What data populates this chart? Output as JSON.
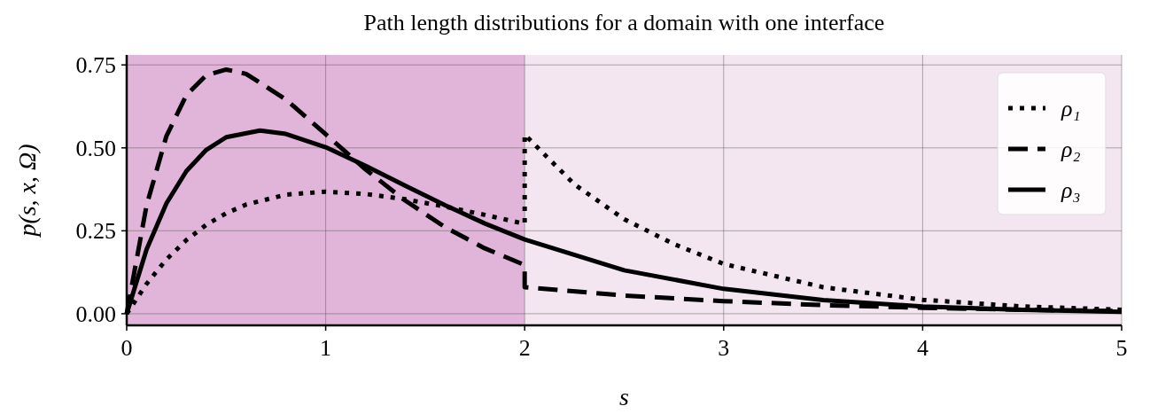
{
  "chart_data": {
    "type": "line",
    "title": "Path length distributions for a domain with one interface",
    "xlabel": "s",
    "ylabel": "p(s, x, Ω)",
    "xlim": [
      0,
      5
    ],
    "ylim": [
      -0.035,
      0.78
    ],
    "xticks": [
      0,
      1,
      2,
      3,
      4,
      5
    ],
    "yticks": [
      {
        "value": 0,
        "label": "0.00"
      },
      {
        "value": 0.25,
        "label": "0.25"
      },
      {
        "value": 0.5,
        "label": "0.50"
      },
      {
        "value": 0.75,
        "label": "0.75"
      }
    ],
    "grid": true,
    "legend": "top right",
    "bands": [
      {
        "axis": "x",
        "from": 0,
        "to": 2,
        "color": "#e1b5d9"
      },
      {
        "axis": "x",
        "from": 2,
        "to": 5,
        "color": "#f4e6f1"
      }
    ],
    "series": [
      {
        "name": "ρ₁",
        "color": "#000000",
        "line_style": "dotted",
        "x": [
          0,
          0.1,
          0.2,
          0.3,
          0.4,
          0.5,
          0.6,
          0.8,
          1,
          1.2,
          1.4,
          1.6,
          1.8,
          2,
          2,
          2.25,
          2.5,
          2.75,
          3,
          3.5,
          4,
          4.5,
          5
        ],
        "values": [
          0,
          0.09,
          0.164,
          0.222,
          0.268,
          0.303,
          0.329,
          0.359,
          0.368,
          0.361,
          0.345,
          0.323,
          0.298,
          0.271,
          0.54,
          0.39,
          0.285,
          0.21,
          0.15,
          0.08,
          0.042,
          0.022,
          0.012
        ]
      },
      {
        "name": "ρ₂",
        "color": "#000000",
        "line_style": "dashed",
        "x": [
          0,
          0.1,
          0.2,
          0.3,
          0.4,
          0.5,
          0.6,
          0.8,
          1,
          1.2,
          1.4,
          1.6,
          1.8,
          2,
          2,
          2.5,
          3,
          3.5,
          4,
          4.5,
          5
        ],
        "values": [
          0,
          0.327,
          0.536,
          0.659,
          0.719,
          0.736,
          0.723,
          0.646,
          0.541,
          0.435,
          0.341,
          0.261,
          0.197,
          0.147,
          0.08,
          0.055,
          0.038,
          0.026,
          0.018,
          0.012,
          0.008
        ]
      },
      {
        "name": "ρ₃",
        "color": "#000000",
        "line_style": "solid",
        "x": [
          0,
          0.1,
          0.2,
          0.3,
          0.4,
          0.5,
          0.67,
          0.8,
          1,
          1.2,
          1.4,
          1.6,
          1.8,
          2,
          2.5,
          3,
          3.5,
          4,
          4.5,
          5
        ],
        "values": [
          0,
          0.194,
          0.333,
          0.43,
          0.494,
          0.532,
          0.552,
          0.542,
          0.502,
          0.446,
          0.386,
          0.327,
          0.272,
          0.224,
          0.131,
          0.075,
          0.041,
          0.022,
          0.012,
          0.006
        ]
      }
    ]
  }
}
